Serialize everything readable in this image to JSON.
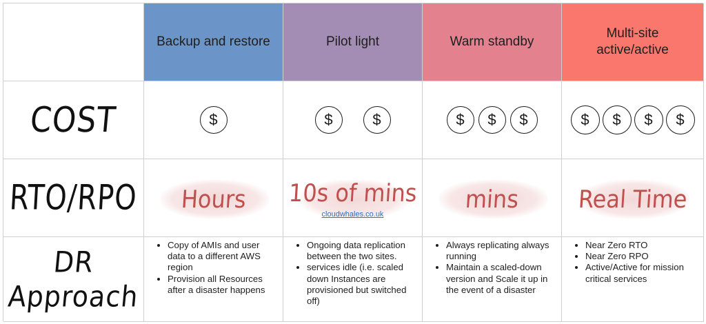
{
  "headers": [
    {
      "label": "Backup and restore"
    },
    {
      "label": "Pilot light"
    },
    {
      "label": "Warm standby"
    },
    {
      "label": "Multi-site active/active"
    }
  ],
  "rows": {
    "cost": {
      "label": "COST"
    },
    "rto": {
      "label": "RTO/RPO"
    },
    "dr": {
      "label_line1": "DR",
      "label_line2": "Approach"
    }
  },
  "coin_symbol": "$",
  "cost_counts": [
    1,
    2,
    3,
    4
  ],
  "rto_values": [
    "Hours",
    "10s of mins",
    "mins",
    "Real Time"
  ],
  "watermark": {
    "text": "cloudwhales.co.uk"
  },
  "dr_approach": [
    [
      "Copy of AMIs and user data to a different AWS region",
      "Provision all Resources after a disaster happens"
    ],
    [
      "Ongoing data replication between the two sites.",
      "services idle (i.e. scaled down Instances are provisioned but switched off)"
    ],
    [
      "Always replicating always running",
      "Maintain a scaled-down version and Scale it up in the event of a disaster"
    ],
    [
      "Near Zero RTO",
      "Near Zero RPO",
      "Active/Active for mission critical services"
    ]
  ],
  "colors": {
    "backup": "#6b95c8",
    "pilot": "#a48db4",
    "warm": "#e4818f",
    "multisite": "#f9776c",
    "handwriting_red": "#c0504d"
  }
}
